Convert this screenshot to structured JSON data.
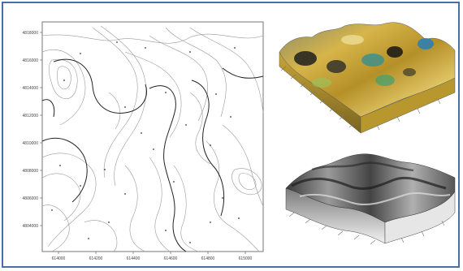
{
  "contour_map": {
    "y_ticks": [
      "4818000",
      "4816000",
      "4814000",
      "4812000",
      "4810000",
      "4808000",
      "4806000",
      "4804000"
    ],
    "x_ticks": [
      "614000",
      "614200",
      "614400",
      "614600",
      "614800",
      "615000"
    ]
  },
  "surface_colored": {
    "axis_ticks": [
      "",
      "",
      "",
      "",
      "",
      "",
      "",
      "",
      "",
      "",
      ""
    ]
  },
  "surface_gray": {
    "axis_ticks": [
      "",
      "",
      "",
      "",
      "",
      "",
      "",
      "",
      ""
    ]
  },
  "colors": {
    "frame_border": "#4a6fa8",
    "contour_major": "#222222",
    "contour_minor": "#9a9a9a",
    "surface_gold": "#c9a63a",
    "surface_teal": "#3f8f8a",
    "surface_gray": "#6b6b6b"
  }
}
